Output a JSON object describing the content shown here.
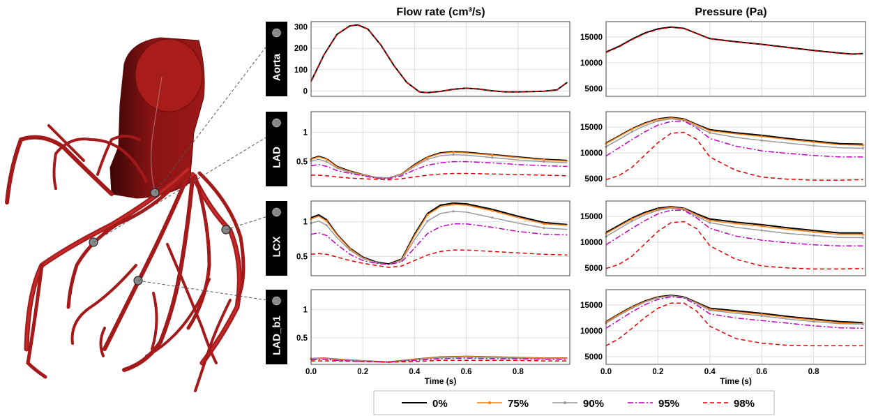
{
  "column_titles": {
    "flow": "Flow rate (cm³/s)",
    "pressure": "Pressure (Pa)"
  },
  "row_labels": [
    "Aorta",
    "LAD",
    "LCX",
    "LAD_b1"
  ],
  "time_label": "Time (s)",
  "legend": [
    {
      "label": "0%",
      "color": "#000000",
      "style": "solid"
    },
    {
      "label": "75%",
      "color": "#ff7f0e",
      "style": "solid-dot"
    },
    {
      "label": "90%",
      "color": "#999999",
      "style": "solid-dot"
    },
    {
      "label": "95%",
      "color": "#c000c0",
      "style": "dashdot"
    },
    {
      "label": "98%",
      "color": "#e00000",
      "style": "dashed"
    }
  ],
  "chart_data": [
    {
      "type": "line",
      "row": "Aorta",
      "quantity": "flow",
      "xlim": [
        0,
        1.0
      ],
      "ylim": [
        -25,
        325
      ],
      "xticks": [
        0.0,
        0.2,
        0.4,
        0.6,
        0.8
      ],
      "yticks": [
        0,
        100,
        200,
        300
      ],
      "x": [
        0.0,
        0.05,
        0.1,
        0.15,
        0.18,
        0.22,
        0.27,
        0.32,
        0.37,
        0.42,
        0.45,
        0.5,
        0.55,
        0.6,
        0.65,
        0.7,
        0.75,
        0.8,
        0.85,
        0.9,
        0.95,
        0.99
      ],
      "series": [
        {
          "name": "0%",
          "values": [
            45,
            170,
            265,
            305,
            310,
            290,
            215,
            120,
            40,
            -5,
            -8,
            -2,
            8,
            13,
            9,
            1,
            -4,
            -4,
            -3,
            -1,
            5,
            40
          ]
        },
        {
          "name": "98%",
          "values": [
            45,
            170,
            265,
            305,
            310,
            290,
            215,
            120,
            40,
            -5,
            -8,
            -2,
            8,
            13,
            9,
            1,
            -4,
            -4,
            -3,
            -1,
            5,
            40
          ]
        }
      ]
    },
    {
      "type": "line",
      "row": "Aorta",
      "quantity": "pressure",
      "xlim": [
        0,
        1.0
      ],
      "ylim": [
        3500,
        18000
      ],
      "xticks": [
        0.0,
        0.2,
        0.4,
        0.6,
        0.8
      ],
      "yticks": [
        5000,
        10000,
        15000
      ],
      "x": [
        0.0,
        0.05,
        0.1,
        0.15,
        0.2,
        0.25,
        0.3,
        0.35,
        0.4,
        0.5,
        0.6,
        0.7,
        0.8,
        0.9,
        0.95,
        0.99
      ],
      "series": [
        {
          "name": "0%",
          "values": [
            12100,
            13200,
            14600,
            15800,
            16600,
            16950,
            16700,
            15700,
            14700,
            14100,
            13600,
            13000,
            12400,
            11900,
            11700,
            11800
          ]
        },
        {
          "name": "98%",
          "values": [
            12000,
            13100,
            14500,
            15700,
            16500,
            16900,
            16650,
            15650,
            14650,
            14050,
            13550,
            12950,
            12350,
            11850,
            11650,
            11900
          ]
        }
      ]
    },
    {
      "type": "line",
      "row": "LAD",
      "quantity": "flow",
      "xlim": [
        0,
        1.0
      ],
      "ylim": [
        0.08,
        1.35
      ],
      "xticks": [
        0.0,
        0.2,
        0.4,
        0.6,
        0.8
      ],
      "yticks": [
        0.5,
        1.0
      ],
      "x": [
        0.0,
        0.03,
        0.06,
        0.1,
        0.15,
        0.2,
        0.25,
        0.3,
        0.35,
        0.4,
        0.45,
        0.5,
        0.55,
        0.6,
        0.7,
        0.8,
        0.9,
        0.99
      ],
      "series": [
        {
          "name": "0%",
          "values": [
            0.55,
            0.59,
            0.55,
            0.42,
            0.34,
            0.28,
            0.23,
            0.22,
            0.29,
            0.45,
            0.58,
            0.65,
            0.67,
            0.66,
            0.62,
            0.58,
            0.54,
            0.52
          ]
        },
        {
          "name": "75%",
          "values": [
            0.54,
            0.58,
            0.54,
            0.41,
            0.33,
            0.28,
            0.23,
            0.22,
            0.29,
            0.44,
            0.57,
            0.64,
            0.66,
            0.65,
            0.61,
            0.57,
            0.53,
            0.51
          ]
        },
        {
          "name": "90%",
          "values": [
            0.51,
            0.54,
            0.5,
            0.39,
            0.32,
            0.27,
            0.23,
            0.22,
            0.28,
            0.42,
            0.54,
            0.6,
            0.62,
            0.61,
            0.57,
            0.53,
            0.5,
            0.48
          ]
        },
        {
          "name": "95%",
          "values": [
            0.43,
            0.45,
            0.42,
            0.35,
            0.3,
            0.26,
            0.22,
            0.21,
            0.26,
            0.36,
            0.44,
            0.48,
            0.5,
            0.5,
            0.48,
            0.45,
            0.43,
            0.42
          ]
        },
        {
          "name": "98%",
          "values": [
            0.27,
            0.27,
            0.26,
            0.24,
            0.22,
            0.21,
            0.2,
            0.19,
            0.21,
            0.24,
            0.27,
            0.29,
            0.3,
            0.3,
            0.29,
            0.28,
            0.27,
            0.26
          ]
        }
      ]
    },
    {
      "type": "line",
      "row": "LAD",
      "quantity": "pressure",
      "xlim": [
        0,
        1.0
      ],
      "ylim": [
        3500,
        18000
      ],
      "xticks": [
        0.0,
        0.2,
        0.4,
        0.6,
        0.8
      ],
      "yticks": [
        5000,
        10000,
        15000
      ],
      "x": [
        0.0,
        0.05,
        0.1,
        0.15,
        0.2,
        0.25,
        0.3,
        0.35,
        0.4,
        0.5,
        0.6,
        0.7,
        0.8,
        0.9,
        0.99
      ],
      "series": [
        {
          "name": "0%",
          "values": [
            11900,
            13300,
            14700,
            15800,
            16600,
            16900,
            16600,
            15500,
            14500,
            13900,
            13400,
            12800,
            12300,
            11800,
            11700
          ]
        },
        {
          "name": "75%",
          "values": [
            11800,
            13200,
            14600,
            15700,
            16500,
            16800,
            16500,
            15400,
            14300,
            13700,
            13200,
            12600,
            12100,
            11600,
            11500
          ]
        },
        {
          "name": "90%",
          "values": [
            11200,
            12600,
            14100,
            15300,
            16200,
            16600,
            16300,
            15100,
            13900,
            13000,
            12400,
            11900,
            11400,
            11000,
            10900
          ]
        },
        {
          "name": "95%",
          "values": [
            9400,
            11000,
            12600,
            14100,
            15400,
            16100,
            16200,
            14800,
            12800,
            11300,
            10400,
            9900,
            9500,
            9200,
            9200
          ]
        },
        {
          "name": "98%",
          "values": [
            4800,
            5600,
            7200,
            9600,
            12000,
            13800,
            14000,
            12600,
            9200,
            6600,
            5300,
            4900,
            4700,
            4700,
            4800
          ]
        }
      ]
    },
    {
      "type": "line",
      "row": "LCX",
      "quantity": "flow",
      "xlim": [
        0,
        1.0
      ],
      "ylim": [
        0.22,
        1.3
      ],
      "xticks": [
        0.0,
        0.2,
        0.4,
        0.6,
        0.8
      ],
      "yticks": [
        0.5,
        1.0
      ],
      "x": [
        0.0,
        0.03,
        0.06,
        0.1,
        0.15,
        0.2,
        0.25,
        0.3,
        0.35,
        0.4,
        0.45,
        0.5,
        0.55,
        0.6,
        0.7,
        0.8,
        0.9,
        0.99
      ],
      "series": [
        {
          "name": "0%",
          "values": [
            1.06,
            1.1,
            1.03,
            0.82,
            0.62,
            0.49,
            0.42,
            0.39,
            0.46,
            0.82,
            1.12,
            1.24,
            1.27,
            1.26,
            1.18,
            1.08,
            0.99,
            0.96
          ]
        },
        {
          "name": "75%",
          "values": [
            1.04,
            1.08,
            1.01,
            0.81,
            0.61,
            0.48,
            0.41,
            0.38,
            0.45,
            0.8,
            1.1,
            1.22,
            1.25,
            1.24,
            1.16,
            1.06,
            0.97,
            0.95
          ]
        },
        {
          "name": "90%",
          "values": [
            0.98,
            1.01,
            0.95,
            0.77,
            0.59,
            0.47,
            0.41,
            0.38,
            0.44,
            0.74,
            1.01,
            1.12,
            1.15,
            1.14,
            1.06,
            0.98,
            0.91,
            0.89
          ]
        },
        {
          "name": "95%",
          "values": [
            0.82,
            0.84,
            0.8,
            0.67,
            0.53,
            0.44,
            0.4,
            0.38,
            0.42,
            0.62,
            0.83,
            0.93,
            0.97,
            0.97,
            0.92,
            0.86,
            0.82,
            0.81
          ]
        },
        {
          "name": "98%",
          "values": [
            0.53,
            0.54,
            0.53,
            0.49,
            0.44,
            0.4,
            0.37,
            0.34,
            0.36,
            0.44,
            0.52,
            0.57,
            0.59,
            0.59,
            0.57,
            0.55,
            0.53,
            0.52
          ]
        }
      ]
    },
    {
      "type": "line",
      "row": "LCX",
      "quantity": "pressure",
      "xlim": [
        0,
        1.0
      ],
      "ylim": [
        3500,
        18000
      ],
      "xticks": [
        0.0,
        0.2,
        0.4,
        0.6,
        0.8
      ],
      "yticks": [
        5000,
        10000,
        15000
      ],
      "x": [
        0.0,
        0.05,
        0.1,
        0.15,
        0.2,
        0.25,
        0.3,
        0.35,
        0.4,
        0.5,
        0.6,
        0.7,
        0.8,
        0.9,
        0.99
      ],
      "series": [
        {
          "name": "0%",
          "values": [
            11900,
            13300,
            14700,
            15800,
            16600,
            16900,
            16600,
            15500,
            14500,
            13900,
            13400,
            12800,
            12300,
            11800,
            11800
          ]
        },
        {
          "name": "75%",
          "values": [
            11700,
            13100,
            14500,
            15600,
            16400,
            16800,
            16500,
            15300,
            14200,
            13600,
            13100,
            12500,
            12000,
            11500,
            11500
          ]
        },
        {
          "name": "90%",
          "values": [
            11100,
            12600,
            14100,
            15300,
            16200,
            16600,
            16300,
            15000,
            13800,
            12900,
            12300,
            11700,
            11300,
            10900,
            10900
          ]
        },
        {
          "name": "95%",
          "values": [
            9500,
            11100,
            12700,
            14200,
            15500,
            16200,
            16200,
            14700,
            12700,
            11200,
            10400,
            9900,
            9500,
            9300,
            9300
          ]
        },
        {
          "name": "98%",
          "values": [
            4900,
            5700,
            7300,
            9700,
            12100,
            13800,
            14000,
            12600,
            9300,
            6700,
            5400,
            5000,
            4800,
            4800,
            4900
          ]
        }
      ]
    },
    {
      "type": "line",
      "row": "LAD_b1",
      "quantity": "flow",
      "xlim": [
        0,
        1.0
      ],
      "ylim": [
        0.03,
        1.35
      ],
      "xticks": [
        0.0,
        0.2,
        0.4,
        0.6,
        0.8
      ],
      "yticks": [
        0.5,
        1.0
      ],
      "x": [
        0.0,
        0.05,
        0.1,
        0.2,
        0.3,
        0.4,
        0.5,
        0.6,
        0.7,
        0.8,
        0.9,
        0.99
      ],
      "series": [
        {
          "name": "0%",
          "values": [
            0.13,
            0.14,
            0.12,
            0.09,
            0.07,
            0.12,
            0.16,
            0.17,
            0.16,
            0.15,
            0.14,
            0.14
          ]
        },
        {
          "name": "75%",
          "values": [
            0.13,
            0.14,
            0.12,
            0.09,
            0.07,
            0.12,
            0.16,
            0.17,
            0.16,
            0.15,
            0.14,
            0.14
          ]
        },
        {
          "name": "90%",
          "values": [
            0.12,
            0.13,
            0.11,
            0.09,
            0.07,
            0.11,
            0.15,
            0.16,
            0.15,
            0.14,
            0.13,
            0.13
          ]
        },
        {
          "name": "95%",
          "values": [
            0.11,
            0.12,
            0.1,
            0.08,
            0.07,
            0.1,
            0.13,
            0.14,
            0.13,
            0.13,
            0.12,
            0.12
          ]
        },
        {
          "name": "98%",
          "values": [
            0.09,
            0.09,
            0.09,
            0.08,
            0.07,
            0.08,
            0.1,
            0.1,
            0.1,
            0.1,
            0.09,
            0.09
          ]
        }
      ]
    },
    {
      "type": "line",
      "row": "LAD_b1",
      "quantity": "pressure",
      "xlim": [
        0,
        1.0
      ],
      "ylim": [
        3500,
        18000
      ],
      "xticks": [
        0.0,
        0.2,
        0.4,
        0.6,
        0.8
      ],
      "yticks": [
        5000,
        10000,
        15000
      ],
      "x": [
        0.0,
        0.05,
        0.1,
        0.15,
        0.2,
        0.25,
        0.3,
        0.35,
        0.4,
        0.5,
        0.6,
        0.7,
        0.8,
        0.9,
        0.99
      ],
      "series": [
        {
          "name": "0%",
          "values": [
            11800,
            13300,
            14700,
            15800,
            16600,
            16900,
            16600,
            15500,
            14400,
            13900,
            13400,
            12800,
            12300,
            11800,
            11600
          ]
        },
        {
          "name": "75%",
          "values": [
            11700,
            13200,
            14600,
            15700,
            16500,
            16800,
            16500,
            15400,
            14200,
            13700,
            13200,
            12600,
            12100,
            11600,
            11400
          ]
        },
        {
          "name": "90%",
          "values": [
            11500,
            13000,
            14400,
            15600,
            16400,
            16800,
            16500,
            15300,
            14000,
            13400,
            12900,
            12300,
            11800,
            11400,
            11300
          ]
        },
        {
          "name": "95%",
          "values": [
            10500,
            12100,
            13700,
            15100,
            16100,
            16600,
            16400,
            15000,
            13300,
            12500,
            12000,
            11500,
            11000,
            10600,
            10500
          ]
        },
        {
          "name": "98%",
          "values": [
            7100,
            8500,
            10500,
            12600,
            14400,
            15400,
            15400,
            13800,
            10900,
            8500,
            7600,
            7200,
            7100,
            7100,
            7100
          ]
        }
      ]
    }
  ]
}
